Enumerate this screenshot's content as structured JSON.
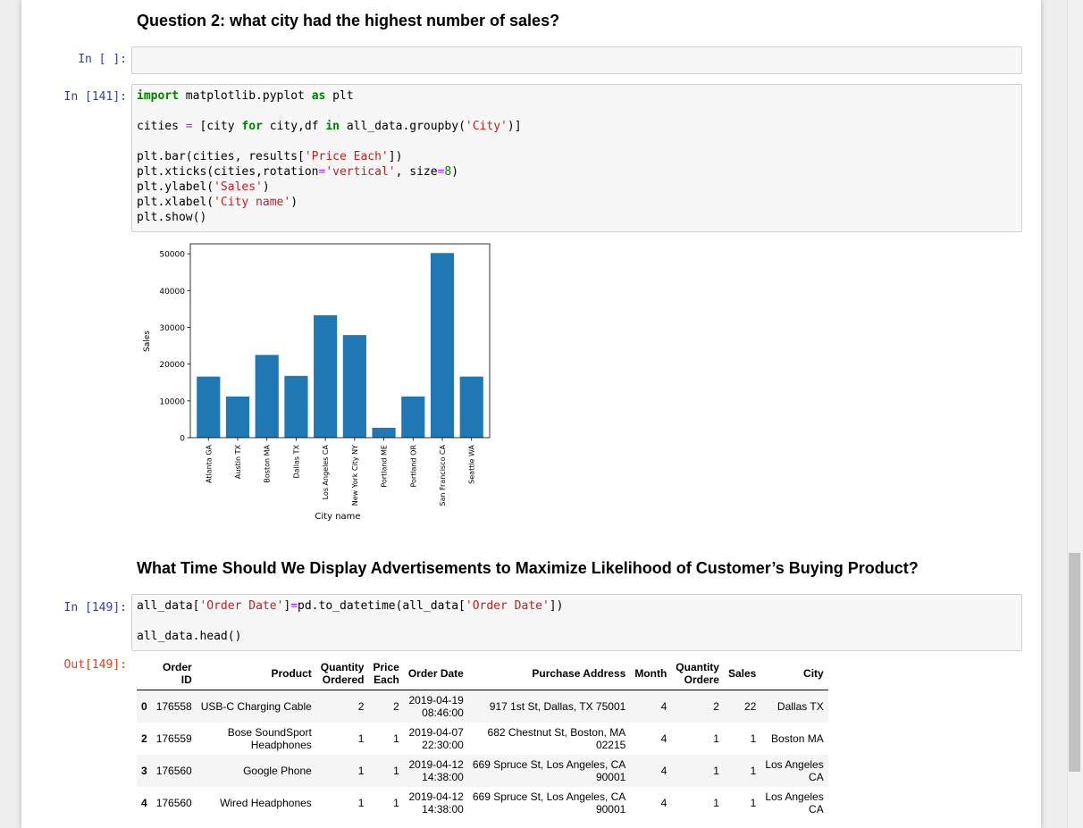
{
  "md": {
    "q2_heading": "Question 2: what city had the highest number of sales?",
    "time_heading": "What Time Should We Display Advertisements to Maximize Likelihood of Customer’s Buying Product?"
  },
  "cells": {
    "empty_prompt": "In [ ]:",
    "chart_prompt": "In [141]:",
    "date_prompt": "In [149]:",
    "out_prompt": "Out[149]:"
  },
  "code": {
    "c141": {
      "l1": [
        "import",
        " matplotlib.pyplot ",
        "as",
        " plt"
      ],
      "l2": [
        "cities ",
        "=",
        " [city ",
        "for",
        " city,df ",
        "in",
        " all_data.groupby(",
        "'City'",
        ")]"
      ],
      "l3": [
        "plt.bar(cities, results[",
        "'Price Each'",
        "])"
      ],
      "l4": [
        "plt.xticks(cities,rotation",
        "=",
        "'vertical'",
        ", size",
        "=",
        "8",
        ")"
      ],
      "l5": [
        "plt.ylabel(",
        "'Sales'",
        ")"
      ],
      "l6": [
        "plt.xlabel(",
        "'City name'",
        ")"
      ],
      "l7": "plt.show()"
    },
    "c149": {
      "l1": [
        "all_data[",
        "'Order Date'",
        "]",
        "=",
        "pd.to_datetime(all_data[",
        "'Order Date'",
        "])"
      ],
      "l2": "all_data.head()"
    }
  },
  "chart_data": {
    "type": "bar",
    "categories": [
      "Atlanta GA",
      "Austin TX",
      "Boston MA",
      "Dallas TX",
      "Los Angeles CA",
      "New York City NY",
      "Portland ME",
      "Portland OR",
      "San Francisco CA",
      "Seattle WA"
    ],
    "values": [
      16600,
      11200,
      22500,
      16800,
      33300,
      27900,
      2700,
      11200,
      50200,
      16600
    ],
    "yticks": [
      "0",
      "10000",
      "20000",
      "30000",
      "40000",
      "50000"
    ],
    "ylim": [
      0,
      52700
    ],
    "xlabel": "City name",
    "ylabel": "Sales",
    "color": "#1f77b4"
  },
  "table": {
    "headers": [
      "",
      "Order\nID",
      "Product",
      "Quantity\nOrdered",
      "Price\nEach",
      "Order Date",
      "Purchase Address",
      "Month",
      "Quantity\nOrdere",
      "Sales",
      "City"
    ],
    "rows": [
      [
        "0",
        "176558",
        "USB-C Charging Cable",
        "2",
        "2",
        "2019-04-19\n08:46:00",
        "917 1st St, Dallas, TX 75001",
        "4",
        "2",
        "22",
        "Dallas TX"
      ],
      [
        "2",
        "176559",
        "Bose SoundSport\nHeadphones",
        "1",
        "1",
        "2019-04-07\n22:30:00",
        "682 Chestnut St, Boston, MA\n02215",
        "4",
        "1",
        "1",
        "Boston MA"
      ],
      [
        "3",
        "176560",
        "Google Phone",
        "1",
        "1",
        "2019-04-12\n14:38:00",
        "669 Spruce St, Los Angeles, CA\n90001",
        "4",
        "1",
        "1",
        "Los Angeles\nCA"
      ],
      [
        "4",
        "176560",
        "Wired Headphones",
        "1",
        "1",
        "2019-04-12\n14:38:00",
        "669 Spruce St, Los Angeles, CA\n90001",
        "4",
        "1",
        "1",
        "Los Angeles\nCA"
      ]
    ]
  }
}
